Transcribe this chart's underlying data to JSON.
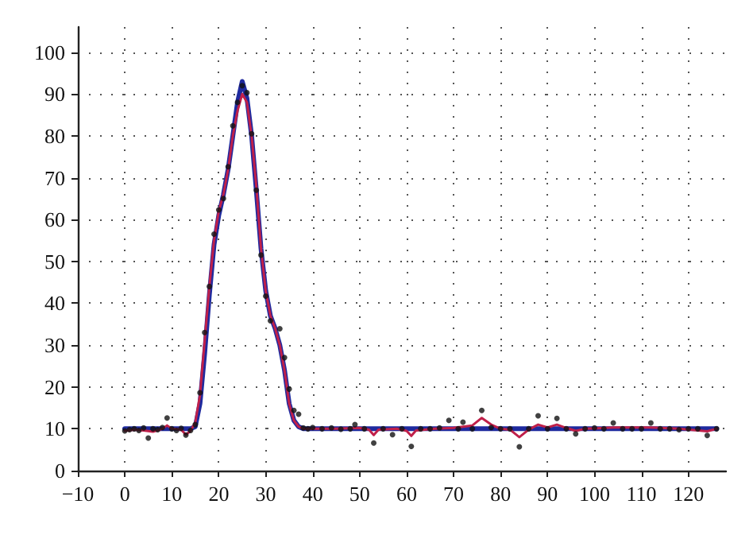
{
  "chart_data": {
    "type": "line",
    "xlim": [
      -10,
      128
    ],
    "ylim": [
      0,
      106
    ],
    "xticks": [
      {
        "value": -10,
        "label": "−10"
      },
      0,
      10,
      20,
      30,
      40,
      50,
      60,
      70,
      80,
      90,
      100,
      110,
      120
    ],
    "yticks": [
      0,
      10,
      20,
      30,
      40,
      50,
      60,
      70,
      80,
      90,
      100
    ],
    "grid": true,
    "marker": "none",
    "line_style": "solid",
    "series": [
      {
        "color": "#1f2a9e",
        "x": [
          0,
          14,
          15,
          16,
          17,
          18,
          19,
          20,
          21,
          22,
          23,
          24,
          25,
          26,
          27,
          28,
          29,
          30,
          31,
          32,
          33,
          34,
          35,
          36,
          37,
          38,
          126
        ],
        "values": [
          10,
          10,
          10.5,
          16,
          28,
          42,
          54,
          61,
          66,
          72,
          80,
          88,
          93,
          89,
          80,
          67,
          53,
          43,
          37,
          34,
          30,
          24,
          16,
          12,
          10.5,
          10,
          10
        ]
      },
      {
        "color": "#c0204a",
        "x": [
          0,
          2,
          4,
          6,
          8,
          9,
          10,
          12,
          13,
          14,
          15,
          16,
          17,
          18,
          19,
          20,
          21,
          22,
          23,
          24,
          25,
          26,
          27,
          28,
          29,
          30,
          31,
          32,
          33,
          34,
          35,
          36,
          37,
          38,
          40,
          45,
          50,
          52,
          53,
          54,
          58,
          60,
          61,
          62,
          66,
          70,
          74,
          76,
          78,
          80,
          82,
          84,
          86,
          88,
          90,
          92,
          94,
          96,
          98,
          104,
          112,
          118,
          124,
          126
        ],
        "values": [
          9.5,
          9.8,
          9.6,
          9.3,
          10,
          10.8,
          10,
          9.8,
          8.6,
          9.5,
          11.5,
          18,
          31,
          44,
          55,
          62,
          66,
          72,
          80,
          86,
          90,
          88,
          80,
          68,
          53,
          43,
          37,
          34,
          30,
          24,
          16,
          12,
          10.5,
          10,
          10,
          10,
          10.2,
          9.8,
          8.5,
          9.8,
          10,
          9.5,
          8.3,
          9.6,
          10,
          10.2,
          10.8,
          12.6,
          11,
          10,
          9.8,
          8,
          9.8,
          11,
          10.3,
          11,
          10.2,
          9.5,
          10,
          10.3,
          10.3,
          10,
          9.4,
          10
        ]
      },
      {
        "type": "scatter",
        "color": "#111111",
        "marker": "circle",
        "x": [
          0,
          1,
          2,
          3,
          4,
          5,
          6,
          7,
          8,
          9,
          10,
          11,
          12,
          13,
          14,
          15,
          16,
          17,
          18,
          19,
          20,
          21,
          22,
          23,
          24,
          25,
          26,
          27,
          28,
          29,
          30,
          31,
          33,
          34,
          35,
          36,
          37,
          38,
          39,
          40,
          42,
          44,
          46,
          48,
          49,
          51,
          53,
          55,
          57,
          59,
          61,
          63,
          65,
          67,
          69,
          71,
          72,
          74,
          76,
          78,
          80,
          82,
          84,
          86,
          88,
          90,
          92,
          94,
          96,
          98,
          100,
          102,
          104,
          106,
          108,
          110,
          112,
          114,
          116,
          118,
          120,
          122,
          124,
          126
        ],
        "values": [
          9.5,
          9.8,
          10,
          9.6,
          10.2,
          7.8,
          10,
          9.8,
          10.3,
          12.6,
          10,
          9.6,
          10.1,
          8.5,
          9.6,
          11,
          18.6,
          33,
          44,
          56.5,
          62.3,
          65,
          72.6,
          82.4,
          88,
          92,
          90.3,
          80.5,
          67,
          51.5,
          41.7,
          35.8,
          33.9,
          27,
          19.5,
          14.4,
          13.5,
          10.2,
          10,
          10.3,
          10,
          10.2,
          9.9,
          10,
          11,
          10,
          6.6,
          10,
          8.6,
          10,
          5.8,
          10,
          10,
          10.2,
          12,
          10,
          11.6,
          10,
          14.4,
          10.3,
          10,
          10,
          5.7,
          10,
          13.1,
          10,
          12.5,
          10,
          8.8,
          10,
          10.2,
          10,
          11.4,
          10,
          10,
          10,
          11.4,
          10,
          10,
          9.8,
          10,
          10,
          8.4,
          10
        ]
      }
    ]
  }
}
